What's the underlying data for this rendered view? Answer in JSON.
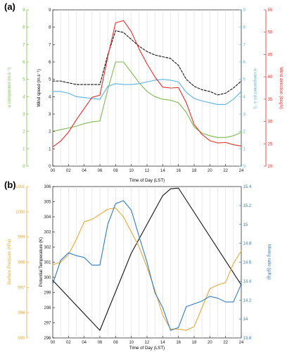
{
  "chart_data": [
    {
      "panel_label": "(a)",
      "type": "line",
      "xlabel": "Time of Day (LST)",
      "xticks": [
        "00",
        "02",
        "04",
        "06",
        "08",
        "10",
        "12",
        "14",
        "16",
        "18",
        "20",
        "22",
        "24"
      ],
      "grid": true,
      "axes": {
        "ws": {
          "label": "Wind speed (m.s⁻¹)",
          "lim": [
            0,
            9
          ],
          "ticks": [
            0,
            1,
            2,
            3,
            4,
            5,
            6,
            7,
            8,
            9
          ],
          "color": "#222222"
        },
        "u": {
          "label": "-u component (m.s⁻¹)",
          "lim": [
            0,
            9
          ],
          "ticks": [
            0,
            1,
            2,
            3,
            4,
            5,
            6,
            7,
            8,
            9
          ],
          "color": "#7dba4c"
        },
        "v": {
          "label": "-v component (m.s⁻¹)",
          "lim": [
            0,
            9
          ],
          "ticks": [
            0,
            1,
            2,
            3,
            4,
            5,
            6,
            7,
            8,
            9
          ],
          "color": "#5ab4e0"
        },
        "wdir": {
          "label": "Wind direction (degN)",
          "lim": [
            20,
            55
          ],
          "ticks": [
            20,
            25,
            30,
            35,
            40,
            45,
            50,
            55
          ],
          "color": "#e0302a"
        }
      },
      "series": [
        {
          "axis": "ws",
          "style": "dashed",
          "color": "#111111",
          "x": [
            0,
            1,
            2,
            3,
            4,
            5,
            6,
            7,
            8,
            9,
            10,
            11,
            12,
            13,
            14,
            15,
            16,
            17,
            18,
            19,
            20,
            21,
            22,
            23,
            24
          ],
          "y": [
            4.9,
            4.9,
            4.8,
            4.7,
            4.7,
            4.7,
            4.7,
            6.4,
            7.8,
            7.7,
            7.3,
            6.9,
            6.6,
            6.4,
            6.3,
            6.2,
            5.8,
            5.0,
            4.6,
            4.4,
            4.3,
            4.1,
            4.2,
            4.5,
            4.9
          ]
        },
        {
          "axis": "u",
          "style": "solid",
          "color": "#7dba4c",
          "x": [
            0,
            1,
            2,
            3,
            4,
            5,
            6,
            7,
            8,
            9,
            10,
            11,
            12,
            13,
            14,
            15,
            16,
            17,
            18,
            19,
            20,
            21,
            22,
            23,
            24
          ],
          "y": [
            2.0,
            2.1,
            2.2,
            2.3,
            2.45,
            2.55,
            2.6,
            4.4,
            6.0,
            6.0,
            5.4,
            4.8,
            4.3,
            4.0,
            3.85,
            3.8,
            3.65,
            3.1,
            2.25,
            1.9,
            1.75,
            1.65,
            1.65,
            1.75,
            1.95
          ]
        },
        {
          "axis": "v",
          "style": "solid",
          "color": "#5ab4e0",
          "x": [
            0,
            1,
            2,
            3,
            4,
            5,
            6,
            7,
            8,
            9,
            10,
            11,
            12,
            13,
            14,
            15,
            16,
            17,
            18,
            19,
            20,
            21,
            22,
            23,
            24
          ],
          "y": [
            4.3,
            4.3,
            4.2,
            4.0,
            3.95,
            3.9,
            3.85,
            4.6,
            4.75,
            4.7,
            4.7,
            4.75,
            4.85,
            4.95,
            5.0,
            4.95,
            4.85,
            4.25,
            3.9,
            3.75,
            3.65,
            3.55,
            3.55,
            3.85,
            4.3
          ]
        },
        {
          "axis": "wdir",
          "style": "solid",
          "color": "#e0302a",
          "x": [
            0,
            1,
            2,
            3,
            4,
            5,
            6,
            7,
            8,
            9,
            10,
            11,
            12,
            13,
            14,
            15,
            16,
            17,
            18,
            19,
            20,
            21,
            22,
            23,
            24
          ],
          "y": [
            24.3,
            25.6,
            27.6,
            30.4,
            32.9,
            35.4,
            35.9,
            44.5,
            52.1,
            52.6,
            50.1,
            46.2,
            42.9,
            40.0,
            37.7,
            37.5,
            37.6,
            34.2,
            29.3,
            27.1,
            25.7,
            25.2,
            25.3,
            24.8,
            24.5
          ]
        }
      ]
    },
    {
      "panel_label": "(b)",
      "type": "line",
      "xlabel": "Time of Day (LST)",
      "xticks": [
        "00",
        "02",
        "04",
        "06",
        "08",
        "10",
        "12",
        "14",
        "16",
        "18",
        "20",
        "22",
        "24"
      ],
      "grid": true,
      "axes": {
        "pt": {
          "label": "Potential Temperature (K)",
          "lim": [
            296,
            306
          ],
          "ticks": [
            296,
            297,
            298,
            299,
            300,
            301,
            302,
            303,
            304,
            305,
            306
          ],
          "color": "#222222"
        },
        "sp": {
          "label": "Surface Pressure (hPa)",
          "lim": [
            995,
            1001
          ],
          "ticks": [
            995,
            996,
            997,
            998,
            999,
            1000,
            1001
          ],
          "color": "#e8a838"
        },
        "mr": {
          "label": "Mixing ratio (g/Kg)",
          "lim": [
            13.8,
            15.4
          ],
          "ticks": [
            13.8,
            14,
            14.2,
            14.4,
            14.6,
            14.8,
            15,
            15.2,
            15.4
          ],
          "ticklabels": [
            "13.8",
            "14",
            "14.2",
            "14.4",
            "14.6",
            "14.8",
            "15",
            "15.2",
            "15.4"
          ],
          "color": "#2f7cc0"
        }
      },
      "series": [
        {
          "axis": "pt",
          "style": "solid",
          "color": "#111111",
          "x": [
            0,
            6,
            10,
            14,
            15,
            16,
            16.5,
            24
          ],
          "y": [
            299.8,
            296.5,
            301.6,
            305.4,
            305.85,
            305.9,
            305.5,
            299.5
          ]
        },
        {
          "axis": "sp",
          "style": "solid",
          "color": "#e8a838",
          "x": [
            0,
            1,
            2,
            3,
            4,
            5,
            6,
            7,
            8,
            9,
            10,
            11,
            12,
            13,
            14,
            15,
            16,
            17,
            18,
            19,
            20,
            21,
            22,
            23,
            24
          ],
          "y": [
            997.9,
            998.0,
            998.3,
            998.9,
            999.6,
            999.7,
            999.9,
            1000.1,
            1000.15,
            999.8,
            999.2,
            998.6,
            997.8,
            996.9,
            995.9,
            995.35,
            995.35,
            995.3,
            995.45,
            996.2,
            996.95,
            997.1,
            997.2,
            997.95,
            998.45
          ]
        },
        {
          "axis": "mr",
          "style": "solid",
          "color": "#2f7cc0",
          "x": [
            0,
            1,
            2,
            3,
            4,
            5,
            6,
            7,
            8,
            9,
            10,
            11,
            12,
            13,
            14,
            15,
            16,
            17,
            18,
            19,
            20,
            21,
            22,
            23,
            24
          ],
          "y": [
            14.37,
            14.62,
            14.7,
            14.67,
            14.65,
            14.57,
            14.57,
            15.0,
            15.22,
            15.25,
            15.15,
            14.87,
            14.6,
            14.28,
            14.12,
            13.88,
            13.91,
            14.13,
            14.16,
            14.19,
            14.24,
            14.22,
            14.18,
            14.18,
            14.37
          ]
        }
      ]
    }
  ]
}
